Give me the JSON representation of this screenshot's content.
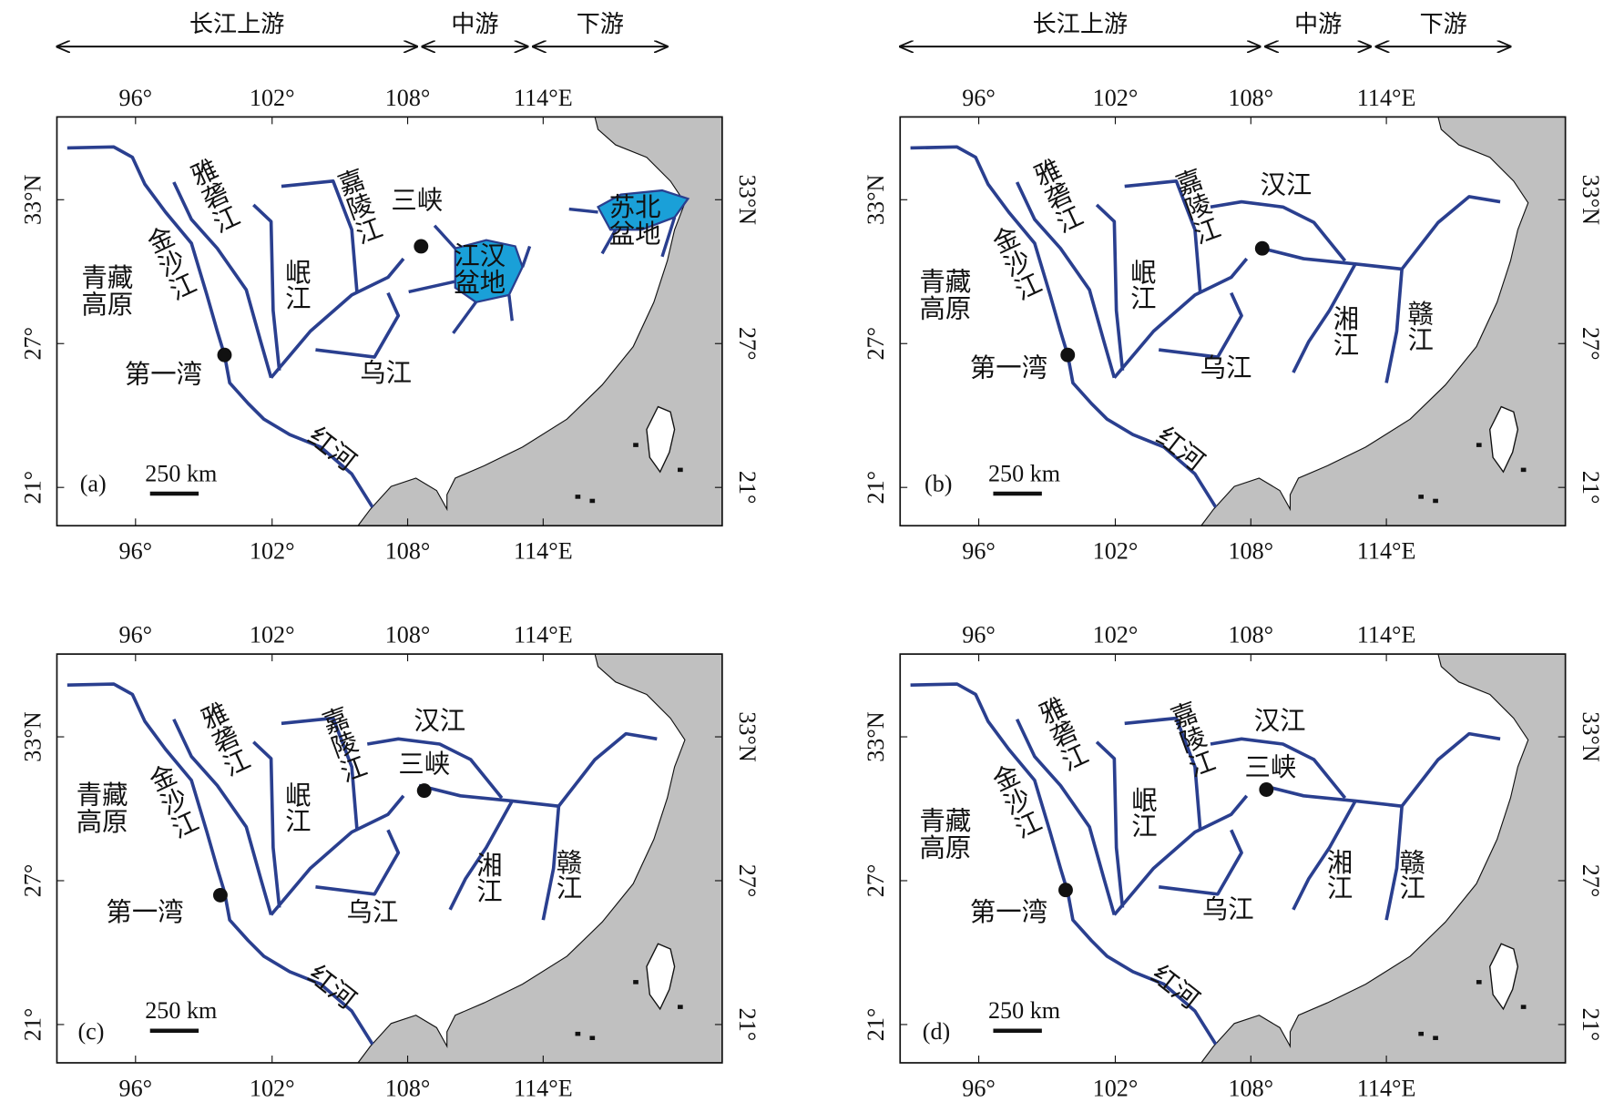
{
  "header": {
    "upper": "长江上游",
    "middle": "中游",
    "lower": "下游"
  },
  "axes": {
    "lon": [
      "96°",
      "102°",
      "108°",
      "114°E"
    ],
    "lat": [
      "33°N",
      "27°",
      "21°"
    ]
  },
  "panels": [
    {
      "tag": "(a)",
      "scale": "250 km",
      "labels": [
        "雅砻江",
        "金沙江",
        "嘉陵江",
        "岷江",
        "三峡",
        "江汉盆地",
        "苏北盆地",
        "青藏高原",
        "第一湾",
        "乌江",
        "红河"
      ]
    },
    {
      "tag": "(b)",
      "scale": "250 km",
      "labels": [
        "雅砻江",
        "金沙江",
        "嘉陵江",
        "汉江",
        "岷江",
        "青藏高原",
        "第一湾",
        "乌江",
        "湘江",
        "赣江",
        "红河"
      ]
    },
    {
      "tag": "(c)",
      "scale": "250 km",
      "labels": [
        "雅砻江",
        "金沙江",
        "嘉陵江",
        "汉江",
        "三峡",
        "岷江",
        "青藏高原",
        "第一湾",
        "乌江",
        "湘江",
        "赣江",
        "红河"
      ]
    },
    {
      "tag": "(d)",
      "scale": "250 km",
      "labels": [
        "雅砻江",
        "金沙江",
        "嘉陵江",
        "汉江",
        "三峡",
        "岷江",
        "青藏高原",
        "第一湾",
        "乌江",
        "湘江",
        "赣江",
        "红河"
      ]
    }
  ]
}
